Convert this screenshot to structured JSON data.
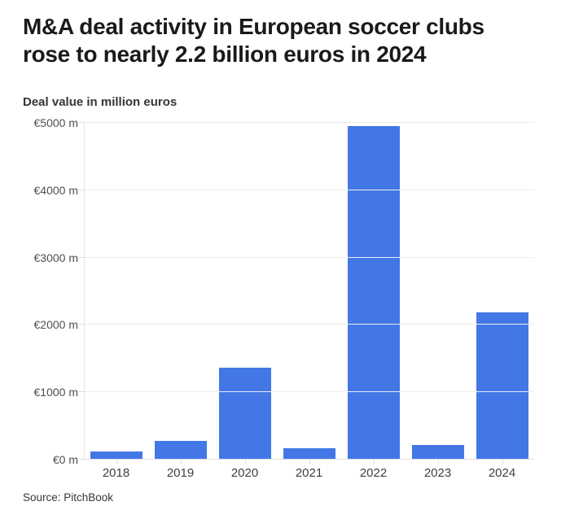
{
  "header": {
    "title_line1": "M&A deal activity in European soccer clubs",
    "title_line2": "rose to nearly 2.2 billion euros in 2024",
    "subtitle": "Deal value in million euros"
  },
  "footer": {
    "source": "Source: PitchBook"
  },
  "colors": {
    "bar_blue": "#4377e6",
    "title_text": "#1a1a1c",
    "gridline": "#ebebef",
    "background": "#ffffff"
  },
  "chart_data": {
    "type": "bar",
    "title": "M&A deal activity in European soccer clubs rose to nearly 2.2 billion euros in 2024",
    "subtitle": "Deal value in million euros",
    "categories": [
      "2018",
      "2019",
      "2020",
      "2021",
      "2022",
      "2023",
      "2024"
    ],
    "values": [
      120,
      280,
      1370,
      170,
      4950,
      220,
      2190
    ],
    "xlabel": "",
    "ylabel": "Deal value in million euros",
    "ylim": [
      0,
      5000
    ],
    "yticks": [
      0,
      1000,
      2000,
      3000,
      4000,
      5000
    ],
    "ytick_labels": [
      "€0 m",
      "€1000 m",
      "€2000 m",
      "€3000 m",
      "€4000 m",
      "€5000 m"
    ],
    "bar_color": "#4377e6",
    "grid": true,
    "legend": false,
    "source": "Source: PitchBook"
  }
}
